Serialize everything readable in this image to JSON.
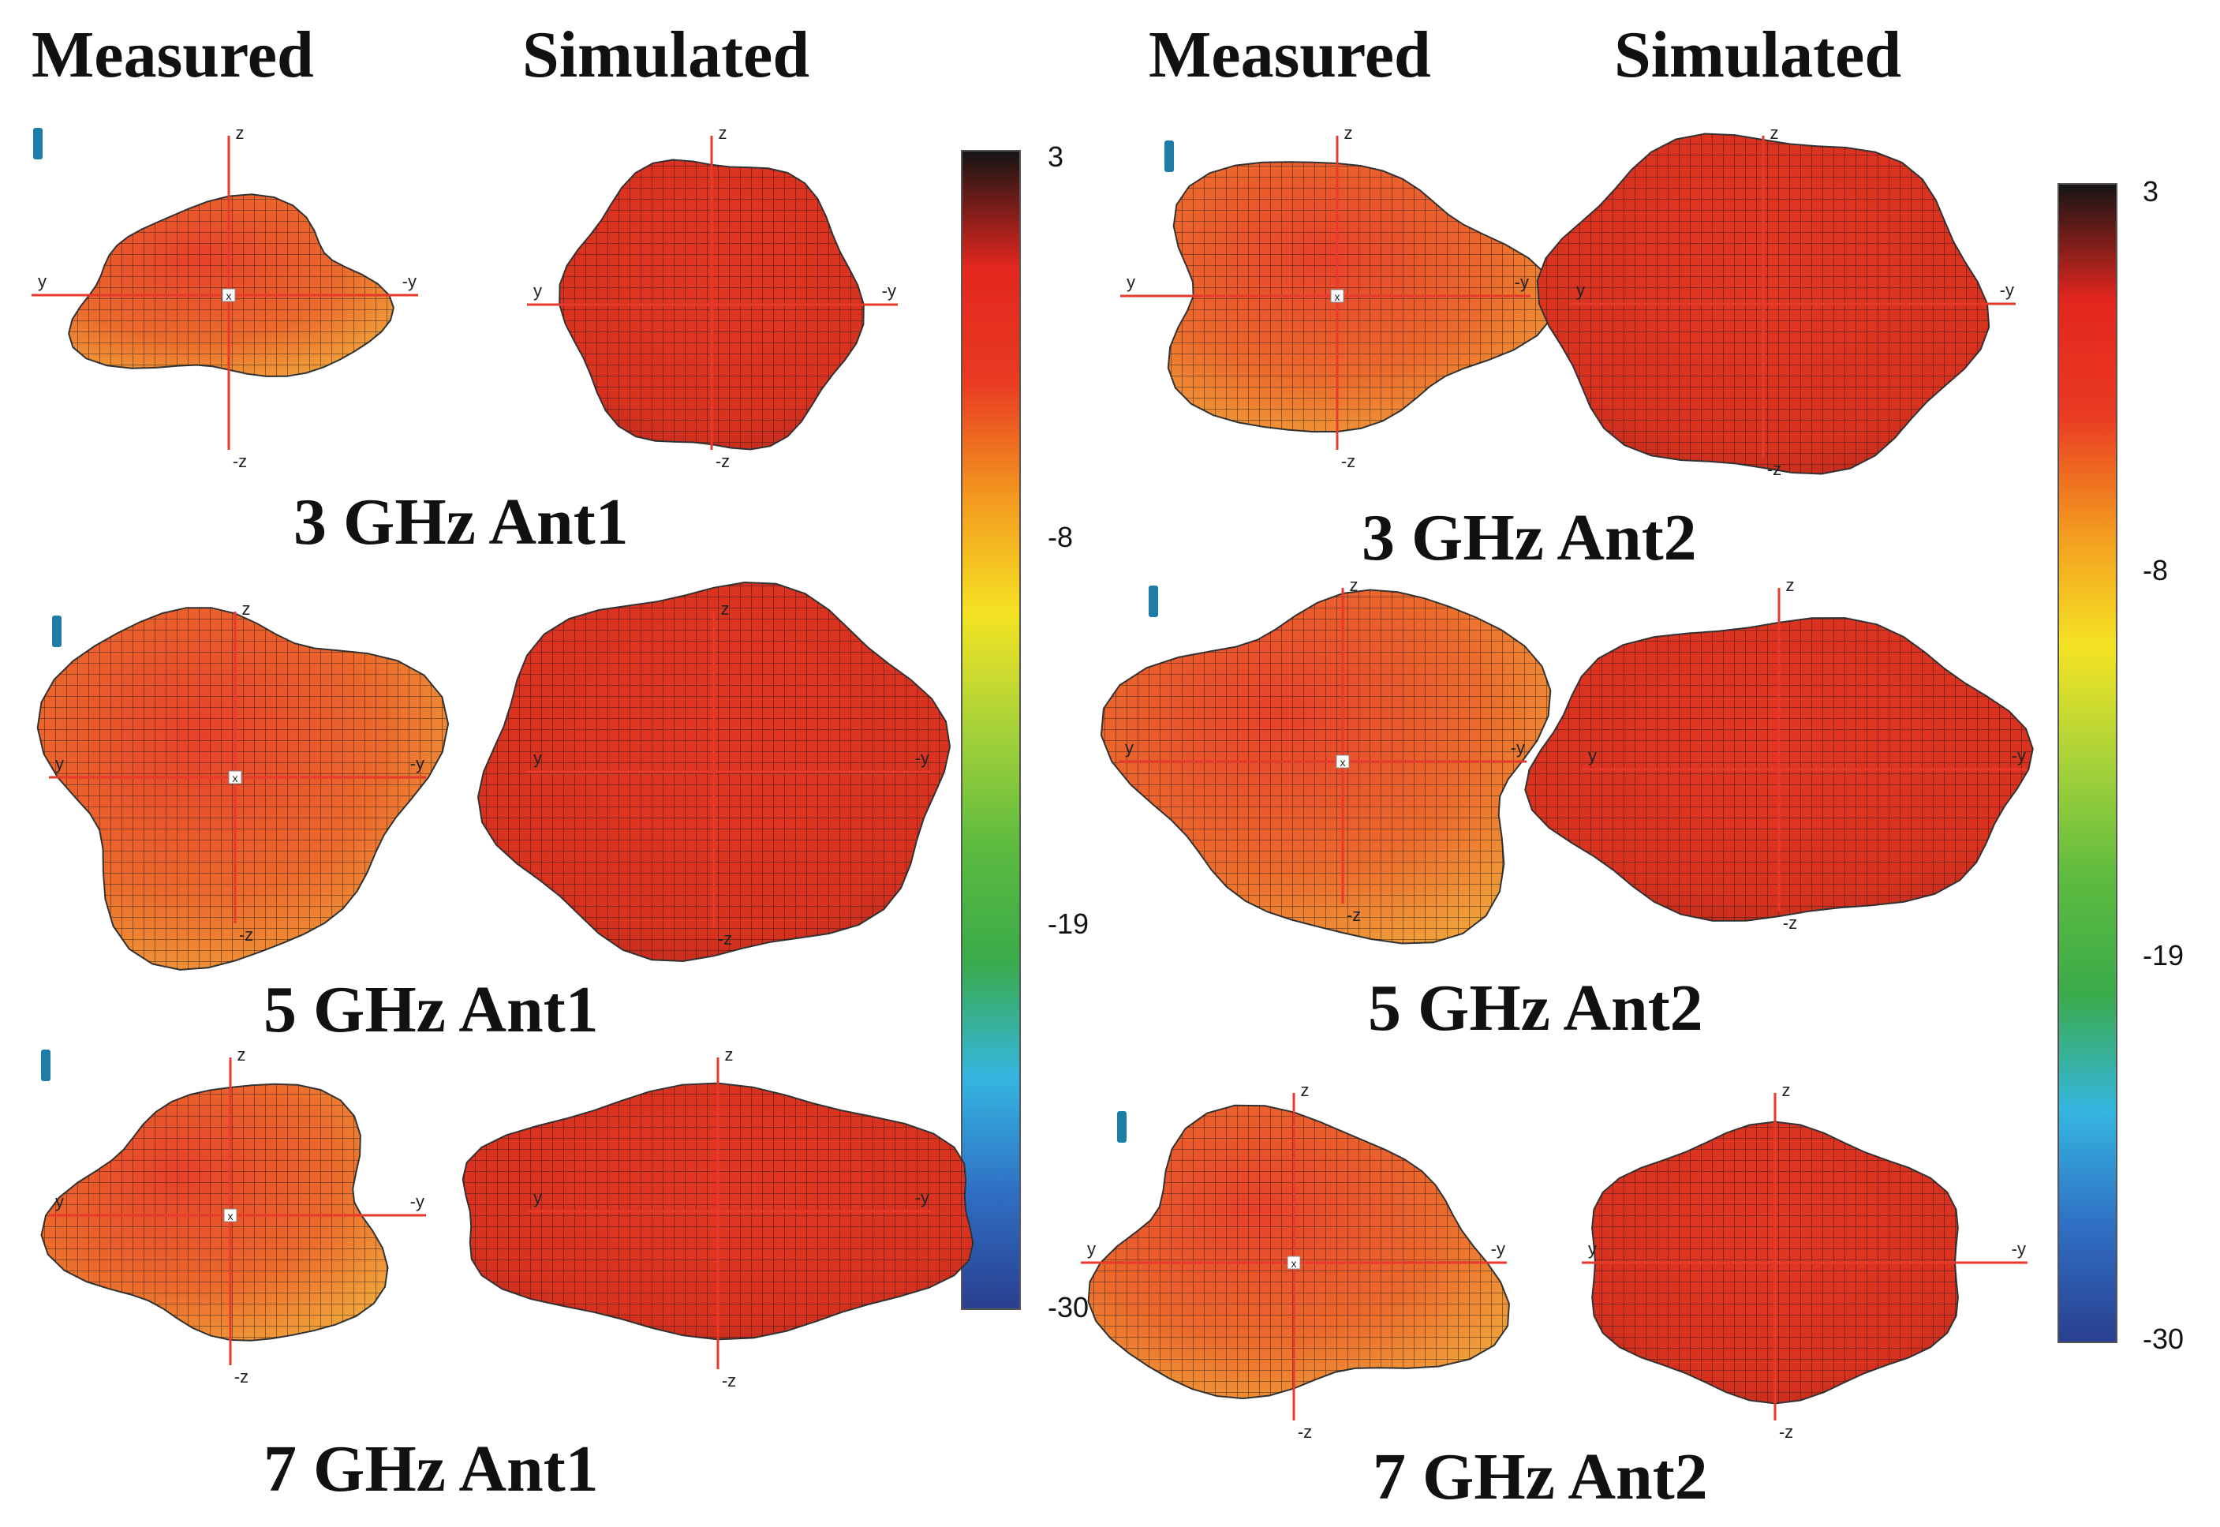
{
  "headers": {
    "measured": "Measured",
    "simulated": "Simulated"
  },
  "labels": {
    "ant1": [
      "3 GHz Ant1",
      "5 GHz Ant1",
      "7 GHz Ant1"
    ],
    "ant2": [
      "3 GHz Ant2",
      "5 GHz Ant2",
      "7 GHz Ant2"
    ]
  },
  "axes": {
    "z": "z",
    "nz": "-z",
    "y": "y",
    "ny": "-y",
    "x": "x"
  },
  "colorbar": {
    "ticks": [
      "3",
      "-8",
      "-19",
      "-30"
    ],
    "stops": [
      "#2a3f8f",
      "#2f6fc4",
      "#35b6e0",
      "#3aab4a",
      "#5dbb3f",
      "#a6d23a",
      "#f4e323",
      "#f39a1f",
      "#e93b22",
      "#e3261e",
      "#151515"
    ]
  },
  "colors": {
    "axis": "#e53a2c",
    "surface": "#e8402a",
    "surface_light": "#f1a33a",
    "mesh": "#1a1a1a",
    "marker": "#1f7ea8"
  }
}
